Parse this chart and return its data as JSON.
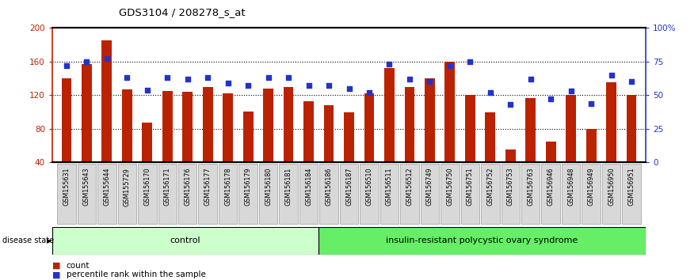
{
  "title": "GDS3104 / 208278_s_at",
  "samples": [
    "GSM155631",
    "GSM155643",
    "GSM155644",
    "GSM155729",
    "GSM156170",
    "GSM156171",
    "GSM156176",
    "GSM156177",
    "GSM156178",
    "GSM156179",
    "GSM156180",
    "GSM156181",
    "GSM156184",
    "GSM156186",
    "GSM156187",
    "GSM156510",
    "GSM156511",
    "GSM156512",
    "GSM156749",
    "GSM156750",
    "GSM156751",
    "GSM156752",
    "GSM156753",
    "GSM156763",
    "GSM156946",
    "GSM156948",
    "GSM156949",
    "GSM156950",
    "GSM156951"
  ],
  "count_values": [
    140,
    157,
    185,
    127,
    87,
    125,
    124,
    130,
    122,
    101,
    128,
    130,
    113,
    108,
    100,
    122,
    152,
    130,
    140,
    160,
    120,
    100,
    55,
    117,
    65,
    120,
    80,
    135,
    120
  ],
  "percentile_values": [
    72,
    75,
    77,
    63,
    54,
    63,
    62,
    63,
    59,
    57,
    63,
    63,
    57,
    57,
    55,
    52,
    73,
    62,
    60,
    72,
    75,
    52,
    43,
    62,
    47,
    53,
    44,
    65,
    60
  ],
  "control_count": 13,
  "disease_label": "insulin-resistant polycystic ovary syndrome",
  "control_label": "control",
  "y_min": 40,
  "y_max": 200,
  "yticks_left": [
    40,
    80,
    120,
    160,
    200
  ],
  "yticks_right_vals": [
    0,
    25,
    50,
    75,
    100
  ],
  "yticks_right_labels": [
    "0",
    "25",
    "50",
    "75",
    "100%"
  ],
  "bar_color": "#bb2200",
  "dot_color": "#2233cc",
  "control_bg": "#ccffcc",
  "disease_bg": "#66ee66",
  "sample_box_bg": "#d8d8d8",
  "legend_count_label": "count",
  "legend_pct_label": "percentile rank within the sample"
}
